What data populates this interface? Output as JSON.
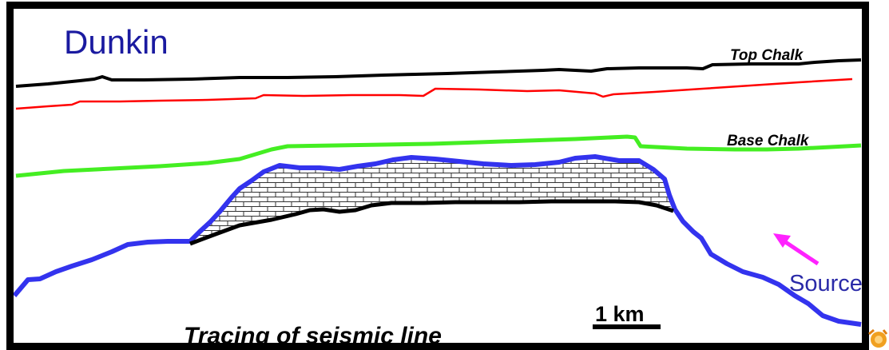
{
  "title": "Dunkin",
  "horizons": {
    "top_chalk": {
      "label": "Top Chalk",
      "color": "#000000"
    },
    "red_horizon": {
      "color": "#ff0000"
    },
    "base_chalk": {
      "label": "Base Chalk",
      "color": "#44ee22"
    },
    "reef_top": {
      "color": "#3333ee"
    }
  },
  "carbonate_body": {
    "fill": "brick-pattern"
  },
  "scale_bar": {
    "label": "1 km"
  },
  "source_label": "Source",
  "arrow_color": "#ff22ff",
  "caption": "Tracing of seismic line",
  "colors": {
    "frame": "#000000",
    "title": "#1a1aa0",
    "source": "#2a2aa8"
  },
  "icons": {
    "corner": "sun-logo-icon"
  }
}
